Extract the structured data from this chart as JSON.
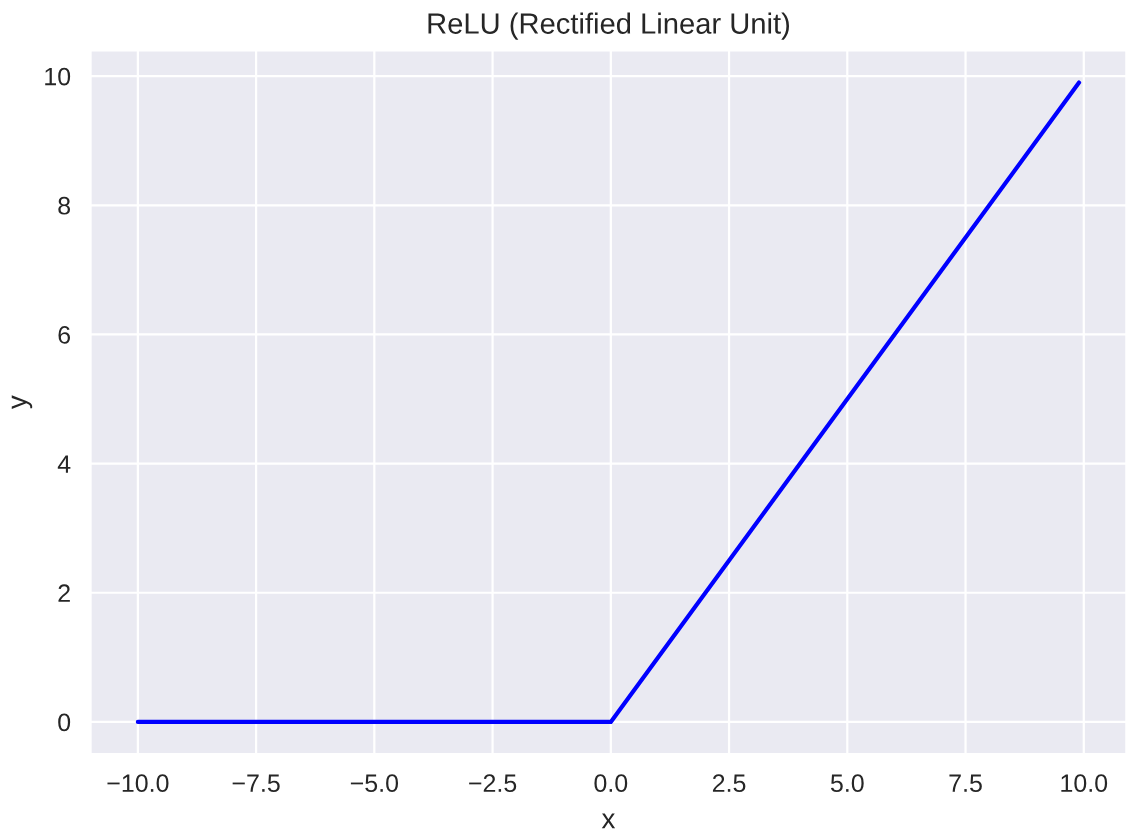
{
  "chart_data": {
    "type": "line",
    "title": "ReLU (Rectified Linear Unit)",
    "xlabel": "x",
    "ylabel": "y",
    "x": [
      -10,
      0,
      9.9
    ],
    "series": [
      {
        "color": "#0000ff",
        "values": [
          0,
          0,
          9.9
        ]
      }
    ],
    "xlim": [
      -11.0,
      10.9
    ],
    "ylim": [
      -0.5,
      10.4
    ],
    "xticks": [
      {
        "value": -10,
        "label": "−10.0"
      },
      {
        "value": -7.5,
        "label": "−7.5"
      },
      {
        "value": -5,
        "label": "−5.0"
      },
      {
        "value": -2.5,
        "label": "−2.5"
      },
      {
        "value": 0,
        "label": "0.0"
      },
      {
        "value": 2.5,
        "label": "2.5"
      },
      {
        "value": 5,
        "label": "5.0"
      },
      {
        "value": 7.5,
        "label": "7.5"
      },
      {
        "value": 10,
        "label": "10.0"
      }
    ],
    "yticks": [
      0,
      2,
      4,
      6,
      8,
      10
    ],
    "grid": true,
    "legend": false
  }
}
